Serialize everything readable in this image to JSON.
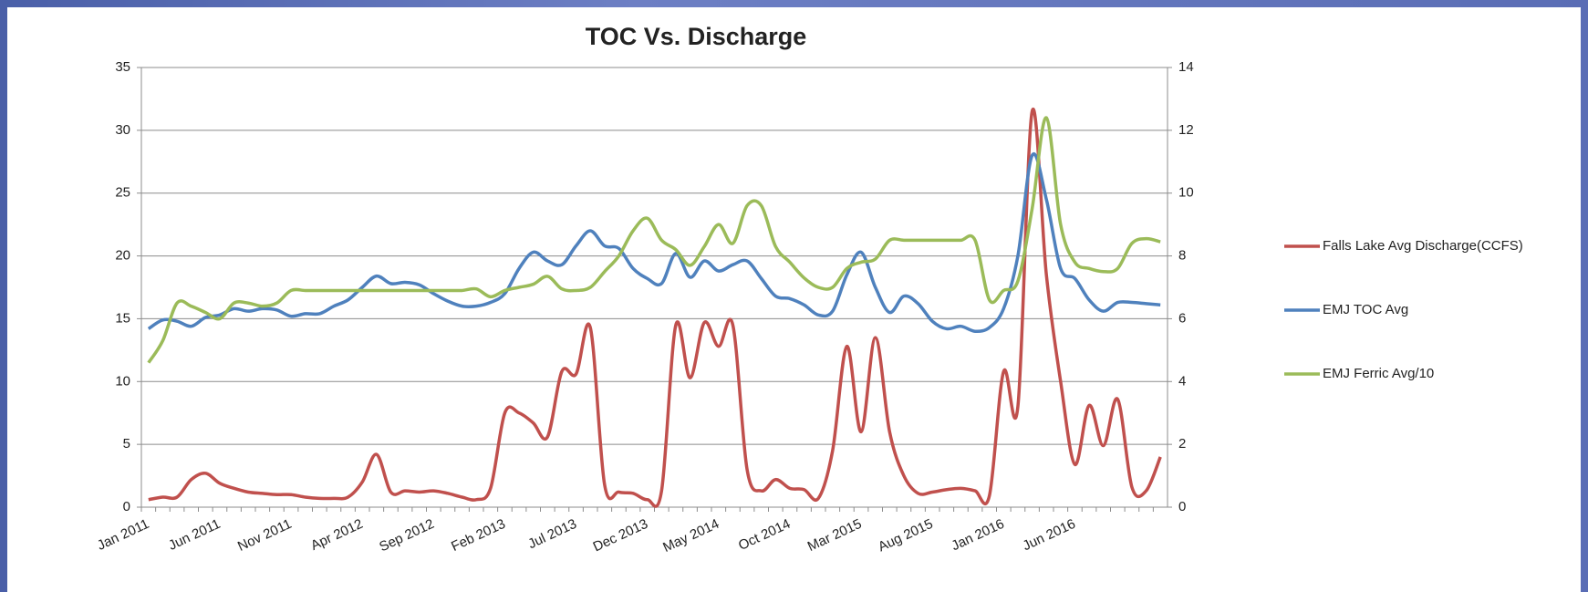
{
  "chart_data": {
    "type": "line",
    "title": "TOC Vs. Discharge",
    "categories": [
      "Jan 2011",
      null,
      null,
      null,
      null,
      "Jun 2011",
      null,
      null,
      null,
      null,
      "Nov 2011",
      null,
      null,
      null,
      null,
      "Apr 2012",
      null,
      null,
      null,
      null,
      "Sep 2012",
      null,
      null,
      null,
      null,
      "Feb 2013",
      null,
      null,
      null,
      null,
      "Jul 2013",
      null,
      null,
      null,
      null,
      "Dec 2013",
      null,
      null,
      null,
      null,
      "May 2014",
      null,
      null,
      null,
      null,
      "Oct 2014",
      null,
      null,
      null,
      null,
      "Mar 2015",
      null,
      null,
      null,
      null,
      "Aug 2015",
      null,
      null,
      null,
      null,
      "Jan 2016",
      null,
      null,
      null,
      null,
      "Jun 2016",
      null,
      null,
      null,
      null,
      null,
      null
    ],
    "ylim": [
      0,
      35
    ],
    "yticks": [
      0,
      5,
      10,
      15,
      20,
      25,
      30,
      35
    ],
    "y2lim": [
      0,
      14
    ],
    "y2ticks": [
      0,
      2,
      4,
      6,
      8,
      10,
      12,
      14
    ],
    "grid": true,
    "legend": "right",
    "series": [
      {
        "name": "Falls Lake Avg Discharge(CCFS)",
        "color": "#c0504d",
        "values": [
          0.6,
          0.8,
          0.8,
          2.2,
          2.7,
          1.9,
          1.5,
          1.2,
          1.1,
          1.0,
          1.0,
          0.8,
          0.7,
          0.7,
          0.8,
          2.0,
          4.2,
          1.2,
          1.3,
          1.2,
          1.3,
          1.1,
          0.8,
          0.6,
          1.5,
          7.5,
          7.5,
          6.7,
          5.6,
          10.8,
          10.6,
          14.3,
          1.8,
          1.2,
          1.1,
          0.6,
          1.3,
          14.5,
          10.3,
          14.7,
          12.8,
          14.5,
          3.0,
          1.3,
          2.2,
          1.5,
          1.4,
          0.7,
          4.5,
          12.8,
          6.0,
          13.5,
          6.0,
          2.5,
          1.1,
          1.2,
          1.4,
          1.5,
          1.3,
          0.9,
          10.8,
          8.0,
          31.5,
          18.5,
          10.0,
          3.4,
          8.1,
          4.9,
          8.6,
          1.6,
          1.3,
          4.0
        ]
      },
      {
        "name": "EMJ TOC Avg",
        "color": "#4f81bd",
        "values": [
          14.2,
          14.9,
          14.8,
          14.4,
          15.1,
          15.3,
          15.8,
          15.6,
          15.8,
          15.7,
          15.2,
          15.4,
          15.4,
          16.0,
          16.5,
          17.5,
          18.4,
          17.8,
          17.9,
          17.7,
          17.0,
          16.4,
          16.0,
          16.0,
          16.3,
          17.0,
          19.0,
          20.3,
          19.6,
          19.3,
          20.8,
          22.0,
          20.8,
          20.6,
          19.0,
          18.2,
          17.8,
          20.2,
          18.3,
          19.6,
          18.8,
          19.3,
          19.6,
          18.2,
          16.8,
          16.6,
          16.1,
          15.3,
          15.6,
          18.5,
          20.3,
          17.5,
          15.5,
          16.8,
          16.2,
          14.8,
          14.2,
          14.4,
          14.0,
          14.3,
          15.8,
          20.0,
          28.0,
          24.5,
          19.0,
          18.2,
          16.5,
          15.6,
          16.3,
          16.3,
          16.2,
          16.1
        ]
      },
      {
        "name": "EMJ Ferric Avg/10",
        "color": "#9bbb59",
        "axis": "y2",
        "values": [
          4.6,
          5.3,
          6.5,
          6.4,
          6.2,
          6.0,
          6.5,
          6.5,
          6.4,
          6.5,
          6.9,
          6.9,
          6.9,
          6.9,
          6.9,
          6.9,
          6.9,
          6.9,
          6.9,
          6.9,
          6.9,
          6.9,
          6.9,
          6.95,
          6.7,
          6.9,
          7.0,
          7.1,
          7.35,
          6.95,
          6.9,
          7.0,
          7.5,
          8.0,
          8.8,
          9.2,
          8.5,
          8.2,
          7.7,
          8.3,
          9.0,
          8.4,
          9.6,
          9.6,
          8.3,
          7.8,
          7.3,
          7.0,
          7.0,
          7.6,
          7.8,
          7.9,
          8.5,
          8.5,
          8.5,
          8.5,
          8.5,
          8.5,
          8.5,
          6.6,
          6.9,
          7.2,
          9.5,
          12.4,
          9.0,
          7.8,
          7.6,
          7.5,
          7.6,
          8.4,
          8.55,
          8.45
        ]
      }
    ]
  }
}
